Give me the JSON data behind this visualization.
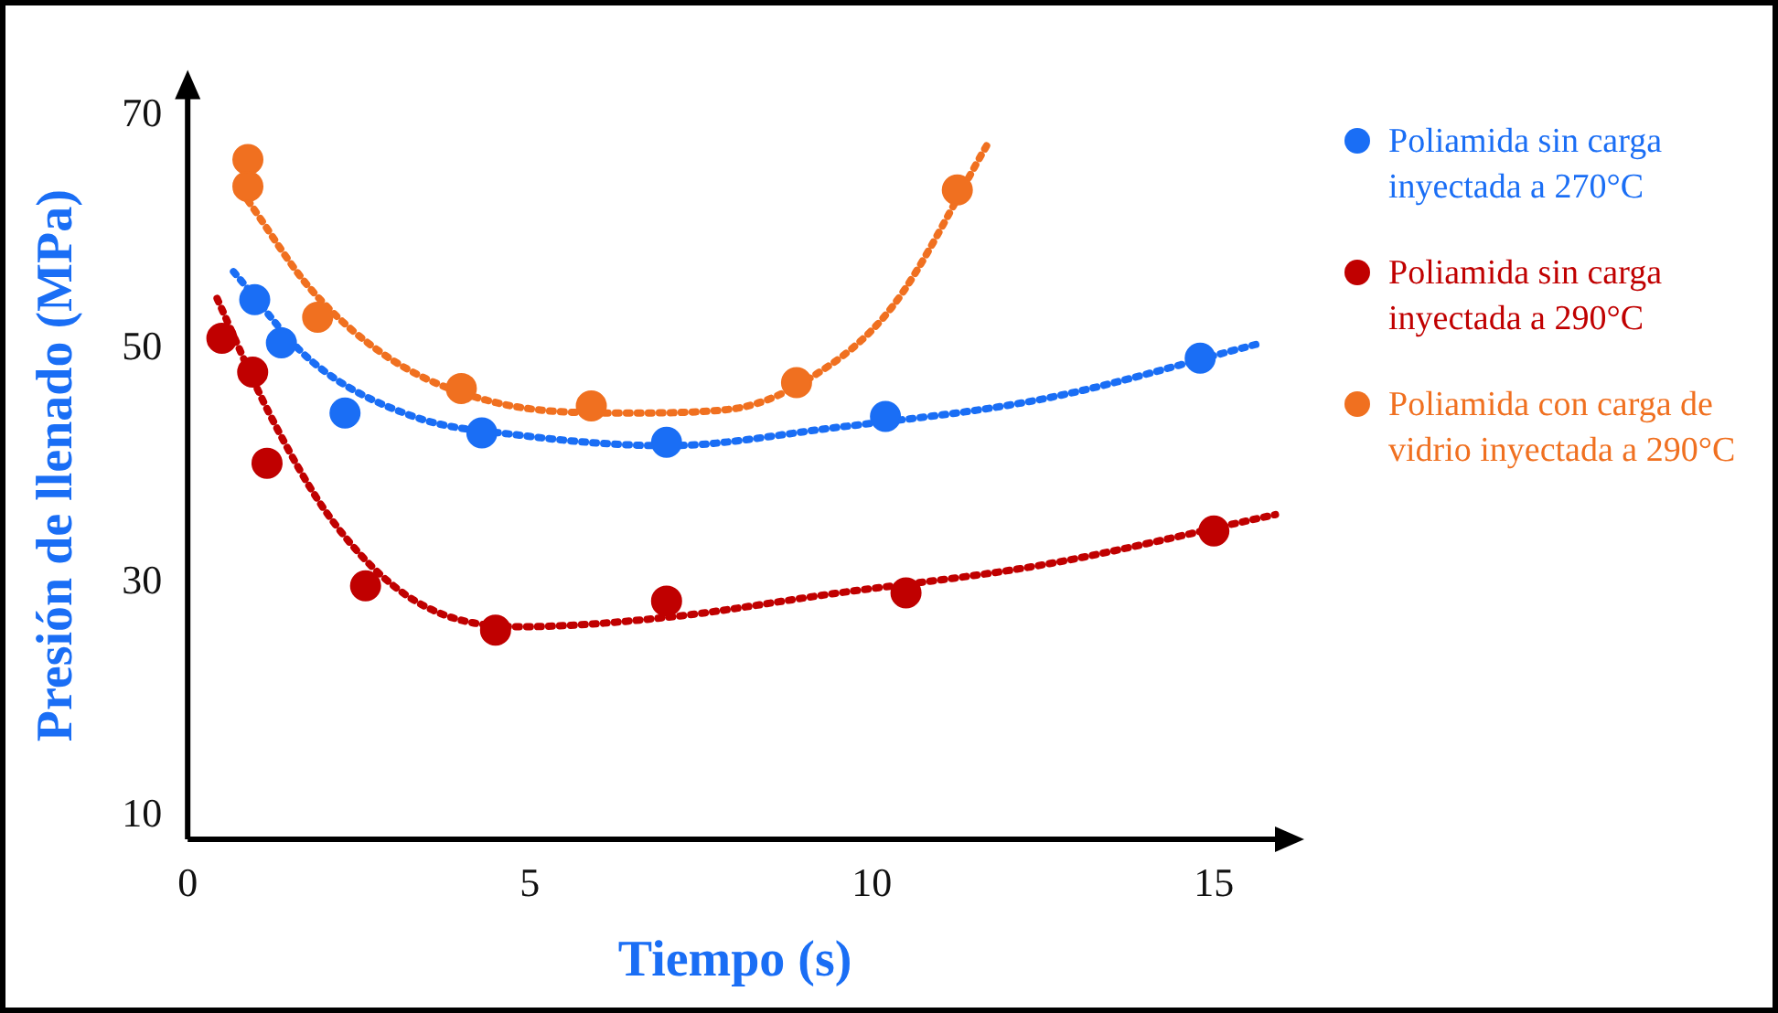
{
  "chart_data": {
    "type": "scatter",
    "xlabel": "Tiempo (s)",
    "ylabel": "Presión de llenado (MPa)",
    "xlim": [
      0,
      16
    ],
    "ylim": [
      8,
      72
    ],
    "xticks": [
      0,
      5,
      10,
      15
    ],
    "yticks": [
      10,
      30,
      50,
      70
    ],
    "grid": false,
    "legend": "right",
    "marker": "circle",
    "series": [
      {
        "name": "Poliamida sin carga inyectada a 270°C",
        "color": "#1a6ef5",
        "x": [
          0.98,
          1.37,
          2.3,
          4.3,
          7.0,
          10.2,
          14.8
        ],
        "values": [
          54.2,
          50.5,
          44.5,
          42.8,
          42.0,
          44.2,
          49.2
        ]
      },
      {
        "name": "Poliamida sin carga inyectada a 290°C",
        "color": "#c00000",
        "x": [
          0.5,
          0.95,
          1.16,
          2.6,
          4.5,
          7.0,
          10.5,
          15.0
        ],
        "values": [
          50.9,
          48.0,
          40.2,
          29.7,
          25.9,
          28.4,
          29.1,
          34.4
        ]
      },
      {
        "name": "Poliamida con carga de vidrio inyectada a 290°C",
        "color": "#f07020",
        "x": [
          0.88,
          0.88,
          1.9,
          4.0,
          5.9,
          8.9,
          11.25
        ],
        "values": [
          66.2,
          63.9,
          52.7,
          46.6,
          45.1,
          47.1,
          63.6
        ]
      },
      {
        "type": "line",
        "line_style": "dotted",
        "marker": "none",
        "color": "#1a6ef5",
        "x": [
          0.67,
          1.8,
          3.3,
          4.85,
          7,
          9.4,
          12.5,
          15.7
        ],
        "values": [
          56.6,
          49,
          44.2,
          42.6,
          41.7,
          43.2,
          45.7,
          50.5
        ]
      },
      {
        "type": "line",
        "line_style": "dotted",
        "marker": "none",
        "color": "#c00000",
        "x": [
          0.43,
          1.19,
          2.1,
          3.3,
          4.85,
          7,
          9.4,
          12.5,
          15.9
        ],
        "values": [
          54.3,
          44.5,
          35.4,
          28.5,
          26.2,
          27,
          29,
          31.5,
          35.8
        ]
      },
      {
        "type": "line",
        "line_style": "dotted",
        "marker": "none",
        "color": "#f07020",
        "x": [
          0.88,
          1.8,
          3.0,
          4.5,
          6.4,
          7.9,
          9.1,
          10.3,
          11.7
        ],
        "values": [
          62.7,
          55.1,
          49,
          45.4,
          44.5,
          44.8,
          47.5,
          53.6,
          67.6
        ]
      }
    ]
  }
}
